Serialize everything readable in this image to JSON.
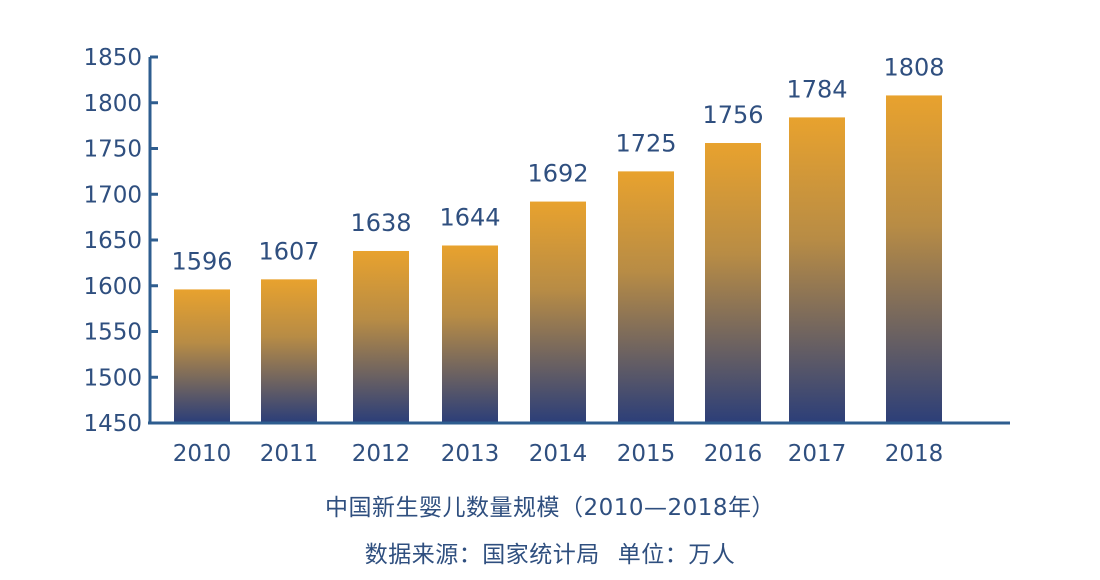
{
  "colors": {
    "bar_top": "#e8a22e",
    "bar_bottom": "#2d3f78",
    "axis": "#2e5d8f",
    "text": "#2f4f7f"
  },
  "chart_data": {
    "type": "bar",
    "title": "中国新生婴儿数量规模（2010—2018年）",
    "source": "数据来源：国家统计局",
    "unit": "单位：万人",
    "categories": [
      "2010",
      "2011",
      "2012",
      "2013",
      "2014",
      "2015",
      "2016",
      "2017",
      "2018"
    ],
    "values": [
      1596,
      1607,
      1638,
      1644,
      1692,
      1725,
      1756,
      1784,
      1808
    ],
    "yticks": [
      1450,
      1500,
      1550,
      1600,
      1650,
      1700,
      1750,
      1800,
      1850
    ],
    "ylim": [
      1450,
      1850
    ],
    "grid": false,
    "legend": "none"
  }
}
